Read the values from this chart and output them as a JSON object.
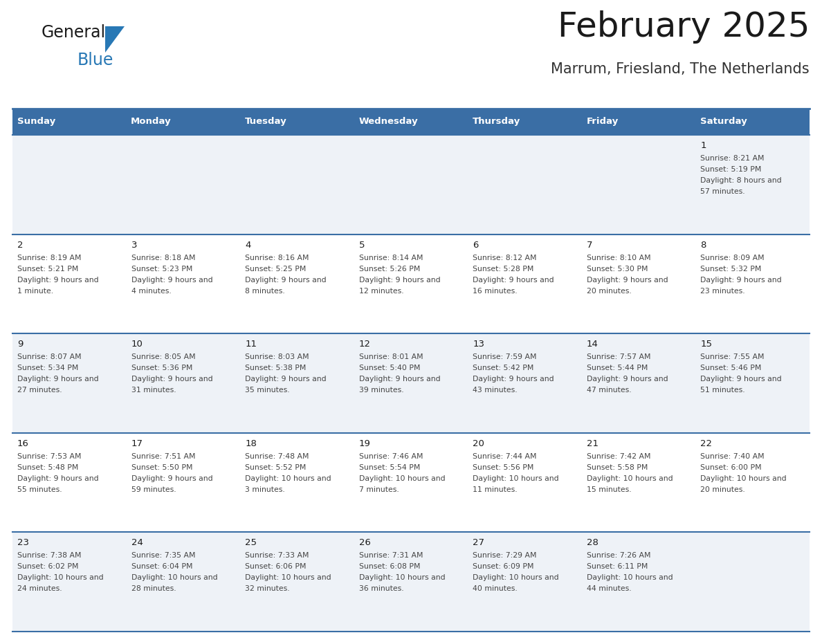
{
  "title": "February 2025",
  "subtitle": "Marrum, Friesland, The Netherlands",
  "days_of_week": [
    "Sunday",
    "Monday",
    "Tuesday",
    "Wednesday",
    "Thursday",
    "Friday",
    "Saturday"
  ],
  "header_bg": "#3a6ea5",
  "header_text": "#ffffff",
  "cell_bg_odd": "#eef2f7",
  "cell_bg_even": "#ffffff",
  "day_number_color": "#1a1a1a",
  "info_text_color": "#444444",
  "border_color": "#3a6ea5",
  "title_color": "#1a1a1a",
  "subtitle_color": "#333333",
  "logo_general_color": "#1a1a1a",
  "logo_blue_color": "#2878b5",
  "calendar_data": [
    {
      "day": 1,
      "row": 0,
      "col": 6,
      "sunrise": "8:21 AM",
      "sunset": "5:19 PM",
      "daylight": "8 hours and 57 minutes"
    },
    {
      "day": 2,
      "row": 1,
      "col": 0,
      "sunrise": "8:19 AM",
      "sunset": "5:21 PM",
      "daylight": "9 hours and 1 minute"
    },
    {
      "day": 3,
      "row": 1,
      "col": 1,
      "sunrise": "8:18 AM",
      "sunset": "5:23 PM",
      "daylight": "9 hours and 4 minutes"
    },
    {
      "day": 4,
      "row": 1,
      "col": 2,
      "sunrise": "8:16 AM",
      "sunset": "5:25 PM",
      "daylight": "9 hours and 8 minutes"
    },
    {
      "day": 5,
      "row": 1,
      "col": 3,
      "sunrise": "8:14 AM",
      "sunset": "5:26 PM",
      "daylight": "9 hours and 12 minutes"
    },
    {
      "day": 6,
      "row": 1,
      "col": 4,
      "sunrise": "8:12 AM",
      "sunset": "5:28 PM",
      "daylight": "9 hours and 16 minutes"
    },
    {
      "day": 7,
      "row": 1,
      "col": 5,
      "sunrise": "8:10 AM",
      "sunset": "5:30 PM",
      "daylight": "9 hours and 20 minutes"
    },
    {
      "day": 8,
      "row": 1,
      "col": 6,
      "sunrise": "8:09 AM",
      "sunset": "5:32 PM",
      "daylight": "9 hours and 23 minutes"
    },
    {
      "day": 9,
      "row": 2,
      "col": 0,
      "sunrise": "8:07 AM",
      "sunset": "5:34 PM",
      "daylight": "9 hours and 27 minutes"
    },
    {
      "day": 10,
      "row": 2,
      "col": 1,
      "sunrise": "8:05 AM",
      "sunset": "5:36 PM",
      "daylight": "9 hours and 31 minutes"
    },
    {
      "day": 11,
      "row": 2,
      "col": 2,
      "sunrise": "8:03 AM",
      "sunset": "5:38 PM",
      "daylight": "9 hours and 35 minutes"
    },
    {
      "day": 12,
      "row": 2,
      "col": 3,
      "sunrise": "8:01 AM",
      "sunset": "5:40 PM",
      "daylight": "9 hours and 39 minutes"
    },
    {
      "day": 13,
      "row": 2,
      "col": 4,
      "sunrise": "7:59 AM",
      "sunset": "5:42 PM",
      "daylight": "9 hours and 43 minutes"
    },
    {
      "day": 14,
      "row": 2,
      "col": 5,
      "sunrise": "7:57 AM",
      "sunset": "5:44 PM",
      "daylight": "9 hours and 47 minutes"
    },
    {
      "day": 15,
      "row": 2,
      "col": 6,
      "sunrise": "7:55 AM",
      "sunset": "5:46 PM",
      "daylight": "9 hours and 51 minutes"
    },
    {
      "day": 16,
      "row": 3,
      "col": 0,
      "sunrise": "7:53 AM",
      "sunset": "5:48 PM",
      "daylight": "9 hours and 55 minutes"
    },
    {
      "day": 17,
      "row": 3,
      "col": 1,
      "sunrise": "7:51 AM",
      "sunset": "5:50 PM",
      "daylight": "9 hours and 59 minutes"
    },
    {
      "day": 18,
      "row": 3,
      "col": 2,
      "sunrise": "7:48 AM",
      "sunset": "5:52 PM",
      "daylight": "10 hours and 3 minutes"
    },
    {
      "day": 19,
      "row": 3,
      "col": 3,
      "sunrise": "7:46 AM",
      "sunset": "5:54 PM",
      "daylight": "10 hours and 7 minutes"
    },
    {
      "day": 20,
      "row": 3,
      "col": 4,
      "sunrise": "7:44 AM",
      "sunset": "5:56 PM",
      "daylight": "10 hours and 11 minutes"
    },
    {
      "day": 21,
      "row": 3,
      "col": 5,
      "sunrise": "7:42 AM",
      "sunset": "5:58 PM",
      "daylight": "10 hours and 15 minutes"
    },
    {
      "day": 22,
      "row": 3,
      "col": 6,
      "sunrise": "7:40 AM",
      "sunset": "6:00 PM",
      "daylight": "10 hours and 20 minutes"
    },
    {
      "day": 23,
      "row": 4,
      "col": 0,
      "sunrise": "7:38 AM",
      "sunset": "6:02 PM",
      "daylight": "10 hours and 24 minutes"
    },
    {
      "day": 24,
      "row": 4,
      "col": 1,
      "sunrise": "7:35 AM",
      "sunset": "6:04 PM",
      "daylight": "10 hours and 28 minutes"
    },
    {
      "day": 25,
      "row": 4,
      "col": 2,
      "sunrise": "7:33 AM",
      "sunset": "6:06 PM",
      "daylight": "10 hours and 32 minutes"
    },
    {
      "day": 26,
      "row": 4,
      "col": 3,
      "sunrise": "7:31 AM",
      "sunset": "6:08 PM",
      "daylight": "10 hours and 36 minutes"
    },
    {
      "day": 27,
      "row": 4,
      "col": 4,
      "sunrise": "7:29 AM",
      "sunset": "6:09 PM",
      "daylight": "10 hours and 40 minutes"
    },
    {
      "day": 28,
      "row": 4,
      "col": 5,
      "sunrise": "7:26 AM",
      "sunset": "6:11 PM",
      "daylight": "10 hours and 44 minutes"
    }
  ]
}
